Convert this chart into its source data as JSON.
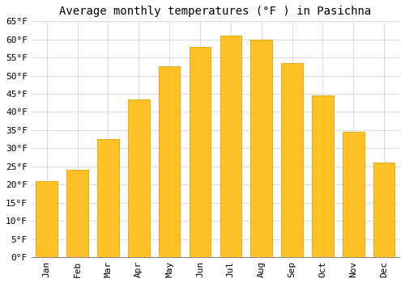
{
  "title": "Average monthly temperatures (°F ) in Pasichna",
  "months": [
    "Jan",
    "Feb",
    "Mar",
    "Apr",
    "May",
    "Jun",
    "Jul",
    "Aug",
    "Sep",
    "Oct",
    "Nov",
    "Dec"
  ],
  "values": [
    21,
    24,
    32.5,
    43.5,
    52.5,
    58,
    61,
    60,
    53.5,
    44.5,
    34.5,
    26
  ],
  "bar_color": "#FFC125",
  "bar_edge_color": "#E8A000",
  "ylim": [
    0,
    65
  ],
  "yticks": [
    0,
    5,
    10,
    15,
    20,
    25,
    30,
    35,
    40,
    45,
    50,
    55,
    60,
    65
  ],
  "ytick_labels": [
    "0°F",
    "5°F",
    "10°F",
    "15°F",
    "20°F",
    "25°F",
    "30°F",
    "35°F",
    "40°F",
    "45°F",
    "50°F",
    "55°F",
    "60°F",
    "65°F"
  ],
  "grid_color": "#dddddd",
  "bg_color": "#ffffff",
  "title_fontsize": 10,
  "tick_fontsize": 8,
  "font_family": "monospace"
}
